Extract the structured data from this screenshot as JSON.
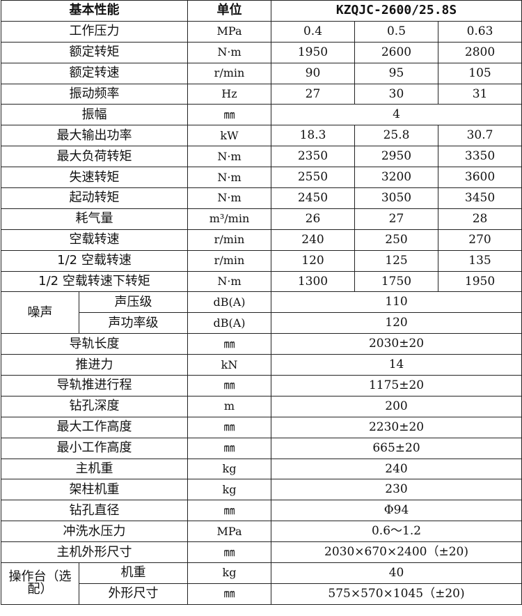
{
  "header": {
    "property": "基本性能",
    "unit": "单位",
    "model": "KZQJC-2600/25.8S"
  },
  "rows": [
    {
      "name": "工作压力",
      "unit": "MPa",
      "values": [
        "0.4",
        "0.5",
        "0.63"
      ]
    },
    {
      "name": "额定转矩",
      "unit": "N·m",
      "values": [
        "1950",
        "2600",
        "2800"
      ]
    },
    {
      "name": "额定转速",
      "unit": "r/min",
      "values": [
        "90",
        "95",
        "105"
      ]
    },
    {
      "name": "振动频率",
      "unit": "Hz",
      "values": [
        "27",
        "30",
        "31"
      ]
    },
    {
      "name": "振幅",
      "unit": "㎜",
      "values": [
        "4"
      ]
    },
    {
      "name": "最大输出功率",
      "unit": "kW",
      "values": [
        "18.3",
        "25.8",
        "30.7"
      ]
    },
    {
      "name": "最大负荷转矩",
      "unit": "N·m",
      "values": [
        "2350",
        "2950",
        "3350"
      ]
    },
    {
      "name": "失速转矩",
      "unit": "N·m",
      "values": [
        "2550",
        "3200",
        "3600"
      ]
    },
    {
      "name": "起动转矩",
      "unit": "N·m",
      "values": [
        "2450",
        "3050",
        "3450"
      ]
    },
    {
      "name": "耗气量",
      "unit": "m³/min",
      "values": [
        "26",
        "27",
        "28"
      ]
    },
    {
      "name": "空载转速",
      "unit": "r/min",
      "values": [
        "240",
        "250",
        "270"
      ]
    },
    {
      "name": "1/2 空载转速",
      "unit": "r/min",
      "values": [
        "120",
        "125",
        "135"
      ]
    },
    {
      "name": "1/2 空载转速下转矩",
      "unit": "N·m",
      "values": [
        "1300",
        "1750",
        "1950"
      ]
    },
    {
      "group": "噪声",
      "name": "声压级",
      "unit": "dB(A)",
      "values": [
        "110"
      ]
    },
    {
      "group": "噪声",
      "name": "声功率级",
      "unit": "dB(A)",
      "values": [
        "120"
      ]
    },
    {
      "name": "导轨长度",
      "unit": "㎜",
      "values": [
        "2030±20"
      ]
    },
    {
      "name": "推进力",
      "unit": "kN",
      "values": [
        "14"
      ]
    },
    {
      "name": "导轨推进行程",
      "unit": "㎜",
      "values": [
        "1175±20"
      ]
    },
    {
      "name": "钻孔深度",
      "unit": "m",
      "values": [
        "200"
      ]
    },
    {
      "name": "最大工作高度",
      "unit": "㎜",
      "values": [
        "2230±20"
      ]
    },
    {
      "name": "最小工作高度",
      "unit": "㎜",
      "values": [
        "665±20"
      ]
    },
    {
      "name": "主机重",
      "unit": "kg",
      "values": [
        "240"
      ]
    },
    {
      "name": "架柱机重",
      "unit": "kg",
      "values": [
        "230"
      ]
    },
    {
      "name": "钻孔直径",
      "unit": "㎜",
      "values": [
        "Φ94"
      ]
    },
    {
      "name": "冲洗水压力",
      "unit": "MPa",
      "values": [
        "0.6～1.2"
      ]
    },
    {
      "name": "主机外形尺寸",
      "unit": "㎜",
      "values": [
        "2030×670×2400（±20)"
      ]
    },
    {
      "group": "操作台（选配）",
      "name": "机重",
      "unit": "kg",
      "values": [
        "40"
      ]
    },
    {
      "group": "操作台（选配）",
      "name": "外形尺寸",
      "unit": "㎜",
      "values": [
        "575×570×1045（±20)"
      ]
    }
  ]
}
